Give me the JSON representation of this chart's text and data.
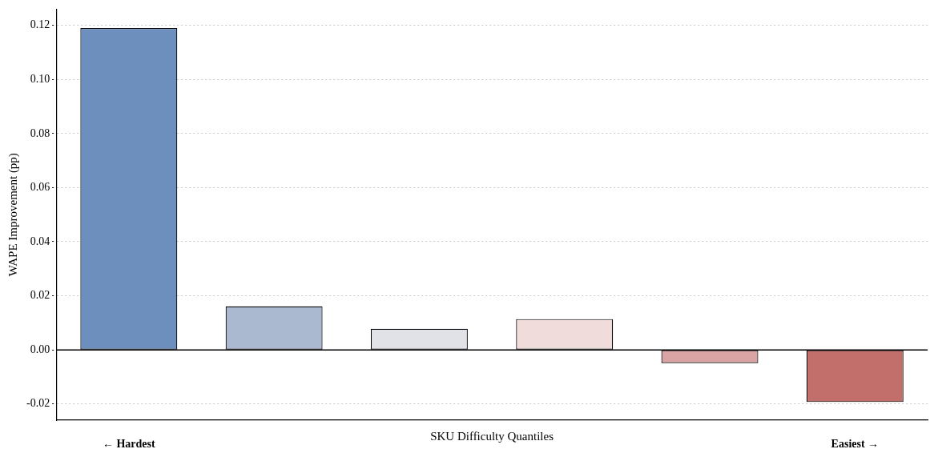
{
  "chart_data": {
    "type": "bar",
    "xlabel": "SKU Difficulty Quantiles",
    "ylabel": "WAPE Improvement (pp)",
    "categories": [
      null,
      null,
      null,
      null,
      null,
      null
    ],
    "values": [
      0.119,
      0.0161,
      0.0078,
      0.0114,
      -0.0049,
      -0.0193
    ],
    "colors": [
      "#6d8fbd",
      "#aab8d0",
      "#e1e2e7",
      "#f1dcdc",
      "#d9a4a3",
      "#c26e6b"
    ],
    "ylim": [
      -0.026,
      0.126
    ],
    "yticks": [
      {
        "value": -0.02,
        "label": "-0.02"
      },
      {
        "value": 0,
        "label": "0.00"
      },
      {
        "value": 0.02,
        "label": "0.02"
      },
      {
        "value": 0.04,
        "label": "0.04"
      },
      {
        "value": 0.06,
        "label": "0.06"
      },
      {
        "value": 0.08,
        "label": "0.08"
      },
      {
        "value": 0.1,
        "label": "0.10"
      },
      {
        "value": 0.12,
        "label": "0.12"
      }
    ],
    "grid": "y",
    "tick_labels": "y",
    "ref_lines": [
      {
        "axis": "y",
        "value": 0,
        "color": "#000000"
      }
    ],
    "annotations": [
      "← Hardest",
      "Easiest →"
    ]
  }
}
